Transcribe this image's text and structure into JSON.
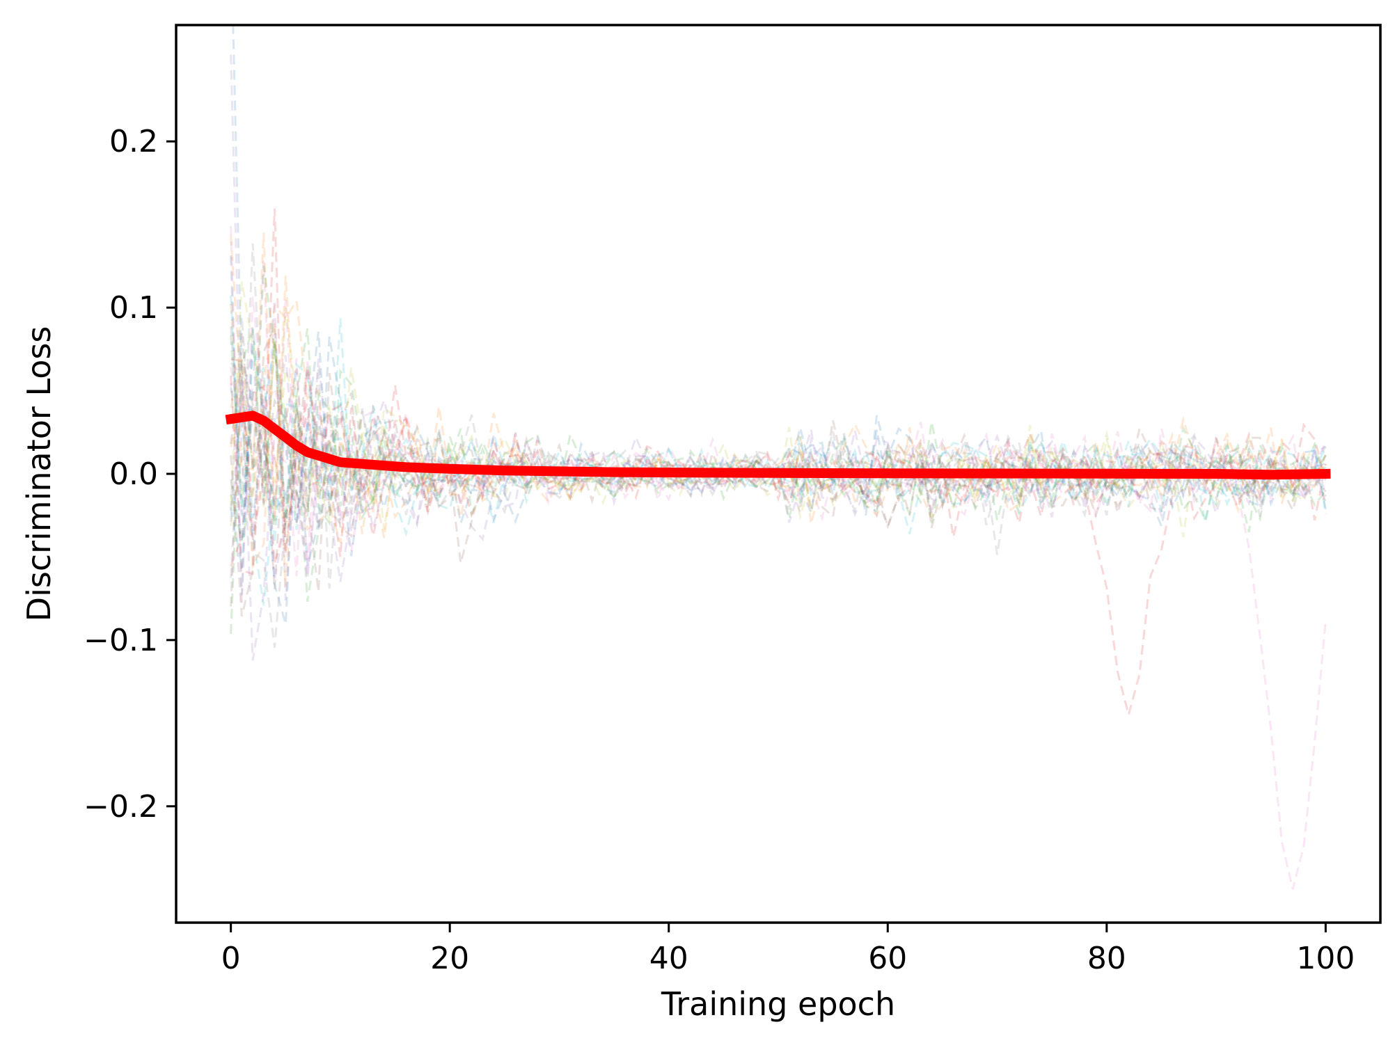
{
  "chart_data": {
    "type": "line",
    "title": "",
    "xlabel": "Training epoch",
    "ylabel": "Discriminator Loss",
    "xlim": [
      -5,
      105
    ],
    "ylim": [
      -0.27,
      0.27
    ],
    "x_ticks": [
      0,
      20,
      40,
      60,
      80,
      100
    ],
    "x_tick_labels": [
      "0",
      "20",
      "40",
      "60",
      "80",
      "100"
    ],
    "y_ticks": [
      -0.2,
      -0.1,
      0.0,
      0.1,
      0.2
    ],
    "y_tick_labels": [
      "−0.2",
      "−0.1",
      "0.0",
      "0.1",
      "0.2"
    ],
    "grid": false,
    "legend": "none",
    "background_runs": {
      "style": "dashed, semi-transparent",
      "count": 30,
      "colors": [
        "#1f77b4",
        "#ff7f0e",
        "#2ca02c",
        "#d62728",
        "#9467bd",
        "#8c564b",
        "#e377c2",
        "#7f7f7f",
        "#bcbd22",
        "#17becf"
      ],
      "initial_spread": 0.2,
      "notable_excursions": [
        {
          "epoch": 82,
          "value": -0.145
        },
        {
          "epoch": 97,
          "value": -0.25
        }
      ]
    },
    "series": [
      {
        "color": "#ff0000",
        "x": [
          0,
          1,
          2,
          3,
          4,
          5,
          6,
          7,
          8,
          9,
          10,
          12,
          14,
          16,
          18,
          20,
          25,
          30,
          35,
          40,
          50,
          60,
          70,
          80,
          90,
          95,
          100
        ],
        "y": [
          0.033,
          0.034,
          0.035,
          0.032,
          0.027,
          0.022,
          0.017,
          0.013,
          0.011,
          0.009,
          0.007,
          0.006,
          0.005,
          0.004,
          0.0035,
          0.003,
          0.002,
          0.0015,
          0.001,
          0.0008,
          0.0005,
          0.0003,
          0.0002,
          0.0001,
          0.0,
          -0.0005,
          0.0
        ]
      }
    ]
  }
}
